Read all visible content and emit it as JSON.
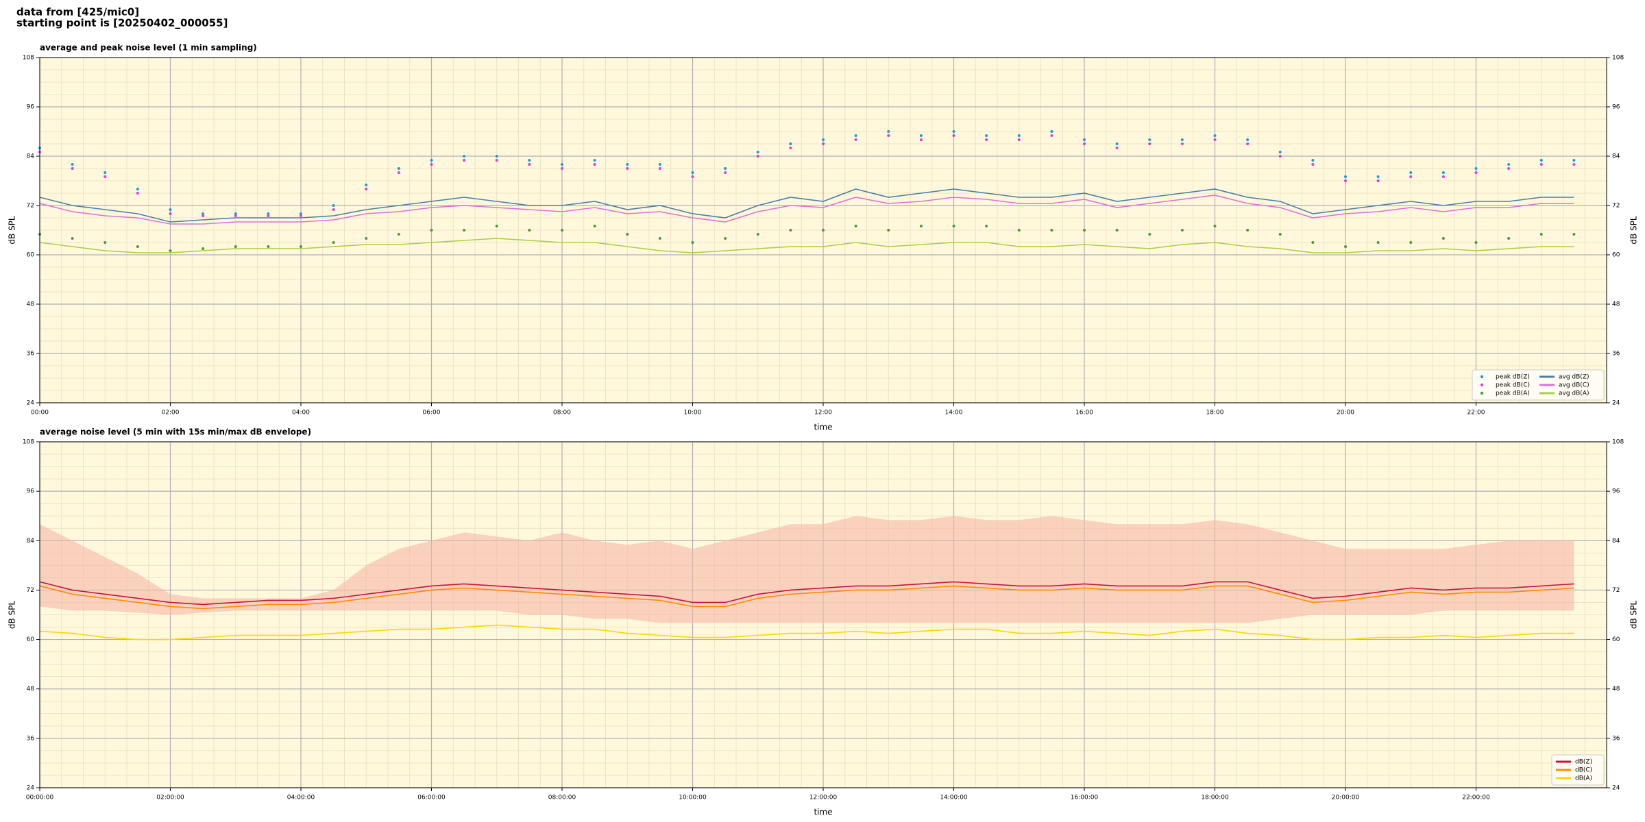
{
  "header": {
    "lines": [
      "data from [425/mic0]",
      "starting point is [20250402_000055]"
    ]
  },
  "chart_data": [
    {
      "type": "line",
      "title": "average and peak noise level (1 min sampling)",
      "x_label": "time",
      "y_label": "dB SPL",
      "background": "#fff8dc",
      "grid": true,
      "minor_grid": true,
      "legend": "lower right",
      "xlim": [
        0,
        24
      ],
      "ylim": [
        24,
        108
      ],
      "xticks": [
        {
          "value": 0,
          "label": "00:00"
        },
        {
          "value": 2,
          "label": "02:00"
        },
        {
          "value": 4,
          "label": "04:00"
        },
        {
          "value": 6,
          "label": "06:00"
        },
        {
          "value": 8,
          "label": "08:00"
        },
        {
          "value": 10,
          "label": "10:00"
        },
        {
          "value": 12,
          "label": "12:00"
        },
        {
          "value": 14,
          "label": "14:00"
        },
        {
          "value": 16,
          "label": "16:00"
        },
        {
          "value": 18,
          "label": "18:00"
        },
        {
          "value": 20,
          "label": "20:00"
        },
        {
          "value": 22,
          "label": "22:00"
        }
      ],
      "yticks": [
        24,
        36,
        48,
        60,
        72,
        84,
        96,
        108
      ],
      "x": [
        0,
        0.5,
        1,
        1.5,
        2,
        2.5,
        3,
        3.5,
        4,
        4.5,
        5,
        5.5,
        6,
        6.5,
        7,
        7.5,
        8,
        8.5,
        9,
        9.5,
        10,
        10.5,
        11,
        11.5,
        12,
        12.5,
        13,
        13.5,
        14,
        14.5,
        15,
        15.5,
        16,
        16.5,
        17,
        17.5,
        18,
        18.5,
        19,
        19.5,
        20,
        20.5,
        21,
        21.5,
        22,
        22.5,
        23,
        23.5
      ],
      "series": [
        {
          "name": "peak dB(Z)",
          "kind": "scatter",
          "color": "#1f9bd8",
          "values": [
            86,
            82,
            80,
            76,
            71,
            70,
            70,
            70,
            70,
            72,
            77,
            81,
            83,
            84,
            84,
            83,
            82,
            83,
            82,
            82,
            80,
            81,
            85,
            87,
            88,
            89,
            90,
            89,
            90,
            89,
            89,
            90,
            88,
            87,
            88,
            88,
            89,
            88,
            85,
            83,
            79,
            79,
            80,
            80,
            81,
            82,
            83,
            83
          ]
        },
        {
          "name": "peak dB(C)",
          "kind": "scatter",
          "color": "#e040d0",
          "values": [
            85,
            81,
            79,
            75,
            70,
            69.5,
            69.5,
            69.5,
            69.5,
            71,
            76,
            80,
            82,
            83,
            83,
            82,
            81,
            82,
            81,
            81,
            79,
            80,
            84,
            86,
            87,
            88,
            89,
            88,
            89,
            88,
            88,
            89,
            87,
            86,
            87,
            87,
            88,
            87,
            84,
            82,
            78,
            78,
            79,
            79,
            80,
            81,
            82,
            82
          ]
        },
        {
          "name": "peak dB(A)",
          "kind": "scatter",
          "color": "#4a9a3a",
          "values": [
            65,
            64,
            63,
            62,
            61,
            61.5,
            62,
            62,
            62,
            63,
            64,
            65,
            66,
            66,
            67,
            66,
            66,
            67,
            65,
            64,
            63,
            64,
            65,
            66,
            66,
            67,
            66,
            67,
            67,
            67,
            66,
            66,
            66,
            66,
            65,
            66,
            67,
            66,
            65,
            63,
            62,
            63,
            63,
            64,
            63,
            64,
            65,
            65
          ]
        },
        {
          "name": "avg dB(Z)",
          "kind": "line",
          "color": "#4a7fa8",
          "values": [
            74,
            72,
            71,
            70,
            68,
            68.5,
            69,
            69,
            69,
            69.5,
            71,
            72,
            73,
            74,
            73,
            72,
            72,
            73,
            71,
            72,
            70,
            69,
            72,
            74,
            73,
            76,
            74,
            75,
            76,
            75,
            74,
            74,
            75,
            73,
            74,
            75,
            76,
            74,
            73,
            70,
            71,
            72,
            73,
            72,
            73,
            73,
            74,
            74
          ]
        },
        {
          "name": "avg dB(C)",
          "kind": "line",
          "color": "#e070d8",
          "values": [
            72.5,
            70.5,
            69.5,
            69,
            67.5,
            67.5,
            68,
            68,
            68,
            68.5,
            70,
            70.5,
            71.5,
            72,
            71.5,
            71,
            70.5,
            71.5,
            70,
            70.5,
            69,
            68,
            70.5,
            72,
            71.5,
            74,
            72.5,
            73,
            74,
            73.5,
            72.5,
            72.5,
            73.5,
            71.5,
            72.5,
            73.5,
            74.5,
            72.5,
            71.5,
            69,
            70,
            70.5,
            71.5,
            70.5,
            71.5,
            71.5,
            72.5,
            72.5
          ]
        },
        {
          "name": "avg dB(A)",
          "kind": "line",
          "color": "#a8d040",
          "values": [
            63,
            62,
            61,
            60.5,
            60.5,
            61,
            61.5,
            61.5,
            61.5,
            62,
            62.5,
            62.5,
            63,
            63.5,
            64,
            63.5,
            63,
            63,
            62,
            61,
            60.5,
            61,
            61.5,
            62,
            62,
            63,
            62,
            62.5,
            63,
            63,
            62,
            62,
            62.5,
            62,
            61.5,
            62.5,
            63,
            62,
            61.5,
            60.5,
            60.5,
            61,
            61,
            61.5,
            61,
            61.5,
            62,
            62
          ]
        }
      ]
    },
    {
      "type": "line",
      "title": "average noise level (5 min with 15s min/max dB envelope)",
      "x_label": "time",
      "y_label": "dB SPL",
      "background": "#fff8dc",
      "grid": true,
      "minor_grid": true,
      "legend": "lower right",
      "xlim": [
        0,
        24
      ],
      "ylim": [
        24,
        108
      ],
      "xticks": [
        {
          "value": 0,
          "label": "00:00:00"
        },
        {
          "value": 2,
          "label": "02:00:00"
        },
        {
          "value": 4,
          "label": "04:00:00"
        },
        {
          "value": 6,
          "label": "06:00:00"
        },
        {
          "value": 8,
          "label": "08:00:00"
        },
        {
          "value": 10,
          "label": "10:00:00"
        },
        {
          "value": 12,
          "label": "12:00:00"
        },
        {
          "value": 14,
          "label": "14:00:00"
        },
        {
          "value": 16,
          "label": "16:00:00"
        },
        {
          "value": 18,
          "label": "18:00:00"
        },
        {
          "value": 20,
          "label": "20:00:00"
        },
        {
          "value": 22,
          "label": "22:00:00"
        }
      ],
      "yticks": [
        24,
        36,
        48,
        60,
        72,
        84,
        96,
        108
      ],
      "x": [
        0,
        0.5,
        1,
        1.5,
        2,
        2.5,
        3,
        3.5,
        4,
        4.5,
        5,
        5.5,
        6,
        6.5,
        7,
        7.5,
        8,
        8.5,
        9,
        9.5,
        10,
        10.5,
        11,
        11.5,
        12,
        12.5,
        13,
        13.5,
        14,
        14.5,
        15,
        15.5,
        16,
        16.5,
        17,
        17.5,
        18,
        18.5,
        19,
        19.5,
        20,
        20.5,
        21,
        21.5,
        22,
        22.5,
        23,
        23.5
      ],
      "envelope": {
        "color": "#f5b8a8",
        "max": [
          88,
          84,
          80,
          76,
          71,
          70,
          70,
          70,
          70,
          72,
          78,
          82,
          84,
          86,
          85,
          84,
          86,
          84,
          83,
          84,
          82,
          84,
          86,
          88,
          88,
          90,
          89,
          89,
          90,
          89,
          89,
          90,
          89,
          88,
          88,
          88,
          89,
          88,
          86,
          84,
          82,
          82,
          82,
          82,
          83,
          84,
          84,
          84
        ],
        "min": [
          68,
          67,
          67,
          66.5,
          66,
          66.5,
          67,
          67,
          67,
          67,
          67,
          67,
          67,
          67,
          67,
          66,
          66,
          65,
          65,
          64,
          64,
          64,
          64,
          64,
          64,
          64,
          64,
          64,
          64,
          64,
          64,
          64,
          64,
          64,
          64,
          64,
          64,
          64,
          65,
          66,
          66,
          66,
          66,
          67,
          67,
          67,
          67,
          67
        ]
      },
      "series": [
        {
          "name": "dB(Z)",
          "kind": "line",
          "color": "#c8143c",
          "values": [
            74,
            72,
            71,
            70,
            69,
            68.5,
            69,
            69.5,
            69.5,
            70,
            71,
            72,
            73,
            73.5,
            73,
            72.5,
            72,
            71.5,
            71,
            70.5,
            69,
            69,
            71,
            72,
            72.5,
            73,
            73,
            73.5,
            74,
            73.5,
            73,
            73,
            73.5,
            73,
            73,
            73,
            74,
            74,
            72,
            70,
            70.5,
            71.5,
            72.5,
            72,
            72.5,
            72.5,
            73,
            73.5
          ]
        },
        {
          "name": "dB(C)",
          "kind": "line",
          "color": "#ff8c00",
          "values": [
            73,
            71,
            70,
            69,
            68,
            67.5,
            68,
            68.5,
            68.5,
            69,
            70,
            71,
            72,
            72.5,
            72,
            71.5,
            71,
            70.5,
            70,
            69.5,
            68,
            68,
            70,
            71,
            71.5,
            72,
            72,
            72.5,
            73,
            72.5,
            72,
            72,
            72.5,
            72,
            72,
            72,
            73,
            73,
            71,
            69,
            69.5,
            70.5,
            71.5,
            71,
            71.5,
            71.5,
            72,
            72.5
          ]
        },
        {
          "name": "dB(A)",
          "kind": "line",
          "color": "#ffd700",
          "values": [
            62,
            61.5,
            60.5,
            60,
            60,
            60.5,
            61,
            61,
            61,
            61.5,
            62,
            62.5,
            62.5,
            63,
            63.5,
            63,
            62.5,
            62.5,
            61.5,
            61,
            60.5,
            60.5,
            61,
            61.5,
            61.5,
            62,
            61.5,
            62,
            62.5,
            62.5,
            61.5,
            61.5,
            62,
            61.5,
            61,
            62,
            62.5,
            61.5,
            61,
            60,
            60,
            60.5,
            60.5,
            61,
            60.5,
            61,
            61.5,
            61.5
          ]
        }
      ]
    }
  ]
}
